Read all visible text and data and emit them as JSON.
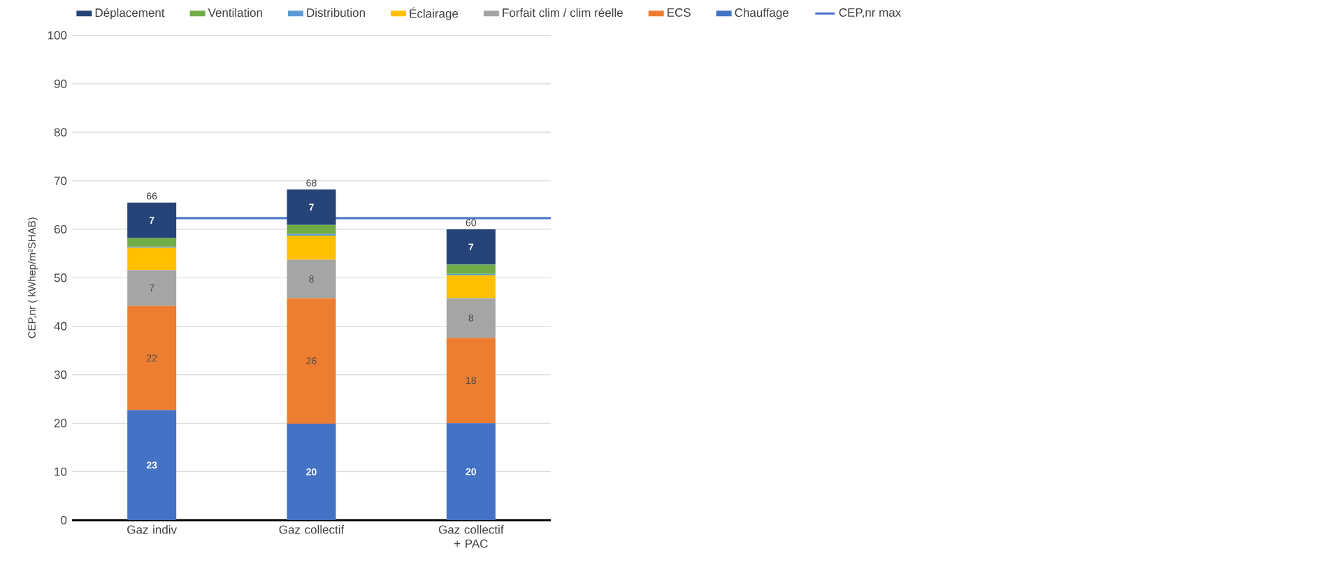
{
  "chart_data": {
    "type": "bar",
    "stacked": true,
    "categories": [
      "Gaz indiv",
      "Gaz collectif",
      "Gaz collectif + PAC"
    ],
    "ylabel": "CEP,nr ( kWhep/m²SHAB)",
    "ylim": [
      0,
      100
    ],
    "yticks": [
      0,
      10,
      20,
      30,
      40,
      50,
      60,
      70,
      80,
      90,
      100
    ],
    "grid": "y",
    "legend": "top",
    "totals": [
      "66",
      "68",
      "60"
    ],
    "series": [
      {
        "name": "Chauffage",
        "color": "#4472c4",
        "values": [
          22.7,
          19.9,
          20.0
        ],
        "value_labels": [
          "23",
          "20",
          "20"
        ]
      },
      {
        "name": "ECS",
        "color": "#ed7d31",
        "values": [
          21.5,
          25.9,
          17.6
        ],
        "value_labels": [
          "22",
          "26",
          "18"
        ]
      },
      {
        "name": "Forfait clim / clim réelle",
        "color": "#a5a5a5",
        "values": [
          7.4,
          7.9,
          8.2
        ],
        "value_labels": [
          "7",
          "8",
          "8"
        ]
      },
      {
        "name": "Éclairage",
        "color": "#ffc000",
        "values": [
          4.6,
          5.0,
          4.7
        ]
      },
      {
        "name": "Distribution",
        "color": "#5b9bd5",
        "values": [
          0.2,
          0.3,
          0.3
        ]
      },
      {
        "name": "Ventilation",
        "color": "#70ad47",
        "values": [
          1.8,
          1.9,
          1.9
        ]
      },
      {
        "name": "Déplacement",
        "color": "#264478",
        "values": [
          7.3,
          7.3,
          7.3
        ],
        "value_labels": [
          "7",
          "7",
          "7"
        ]
      }
    ],
    "ref_lines": [
      {
        "axis": "y",
        "value": 62.3,
        "label": "CEP,nr max",
        "color": "#4472c4"
      }
    ]
  }
}
